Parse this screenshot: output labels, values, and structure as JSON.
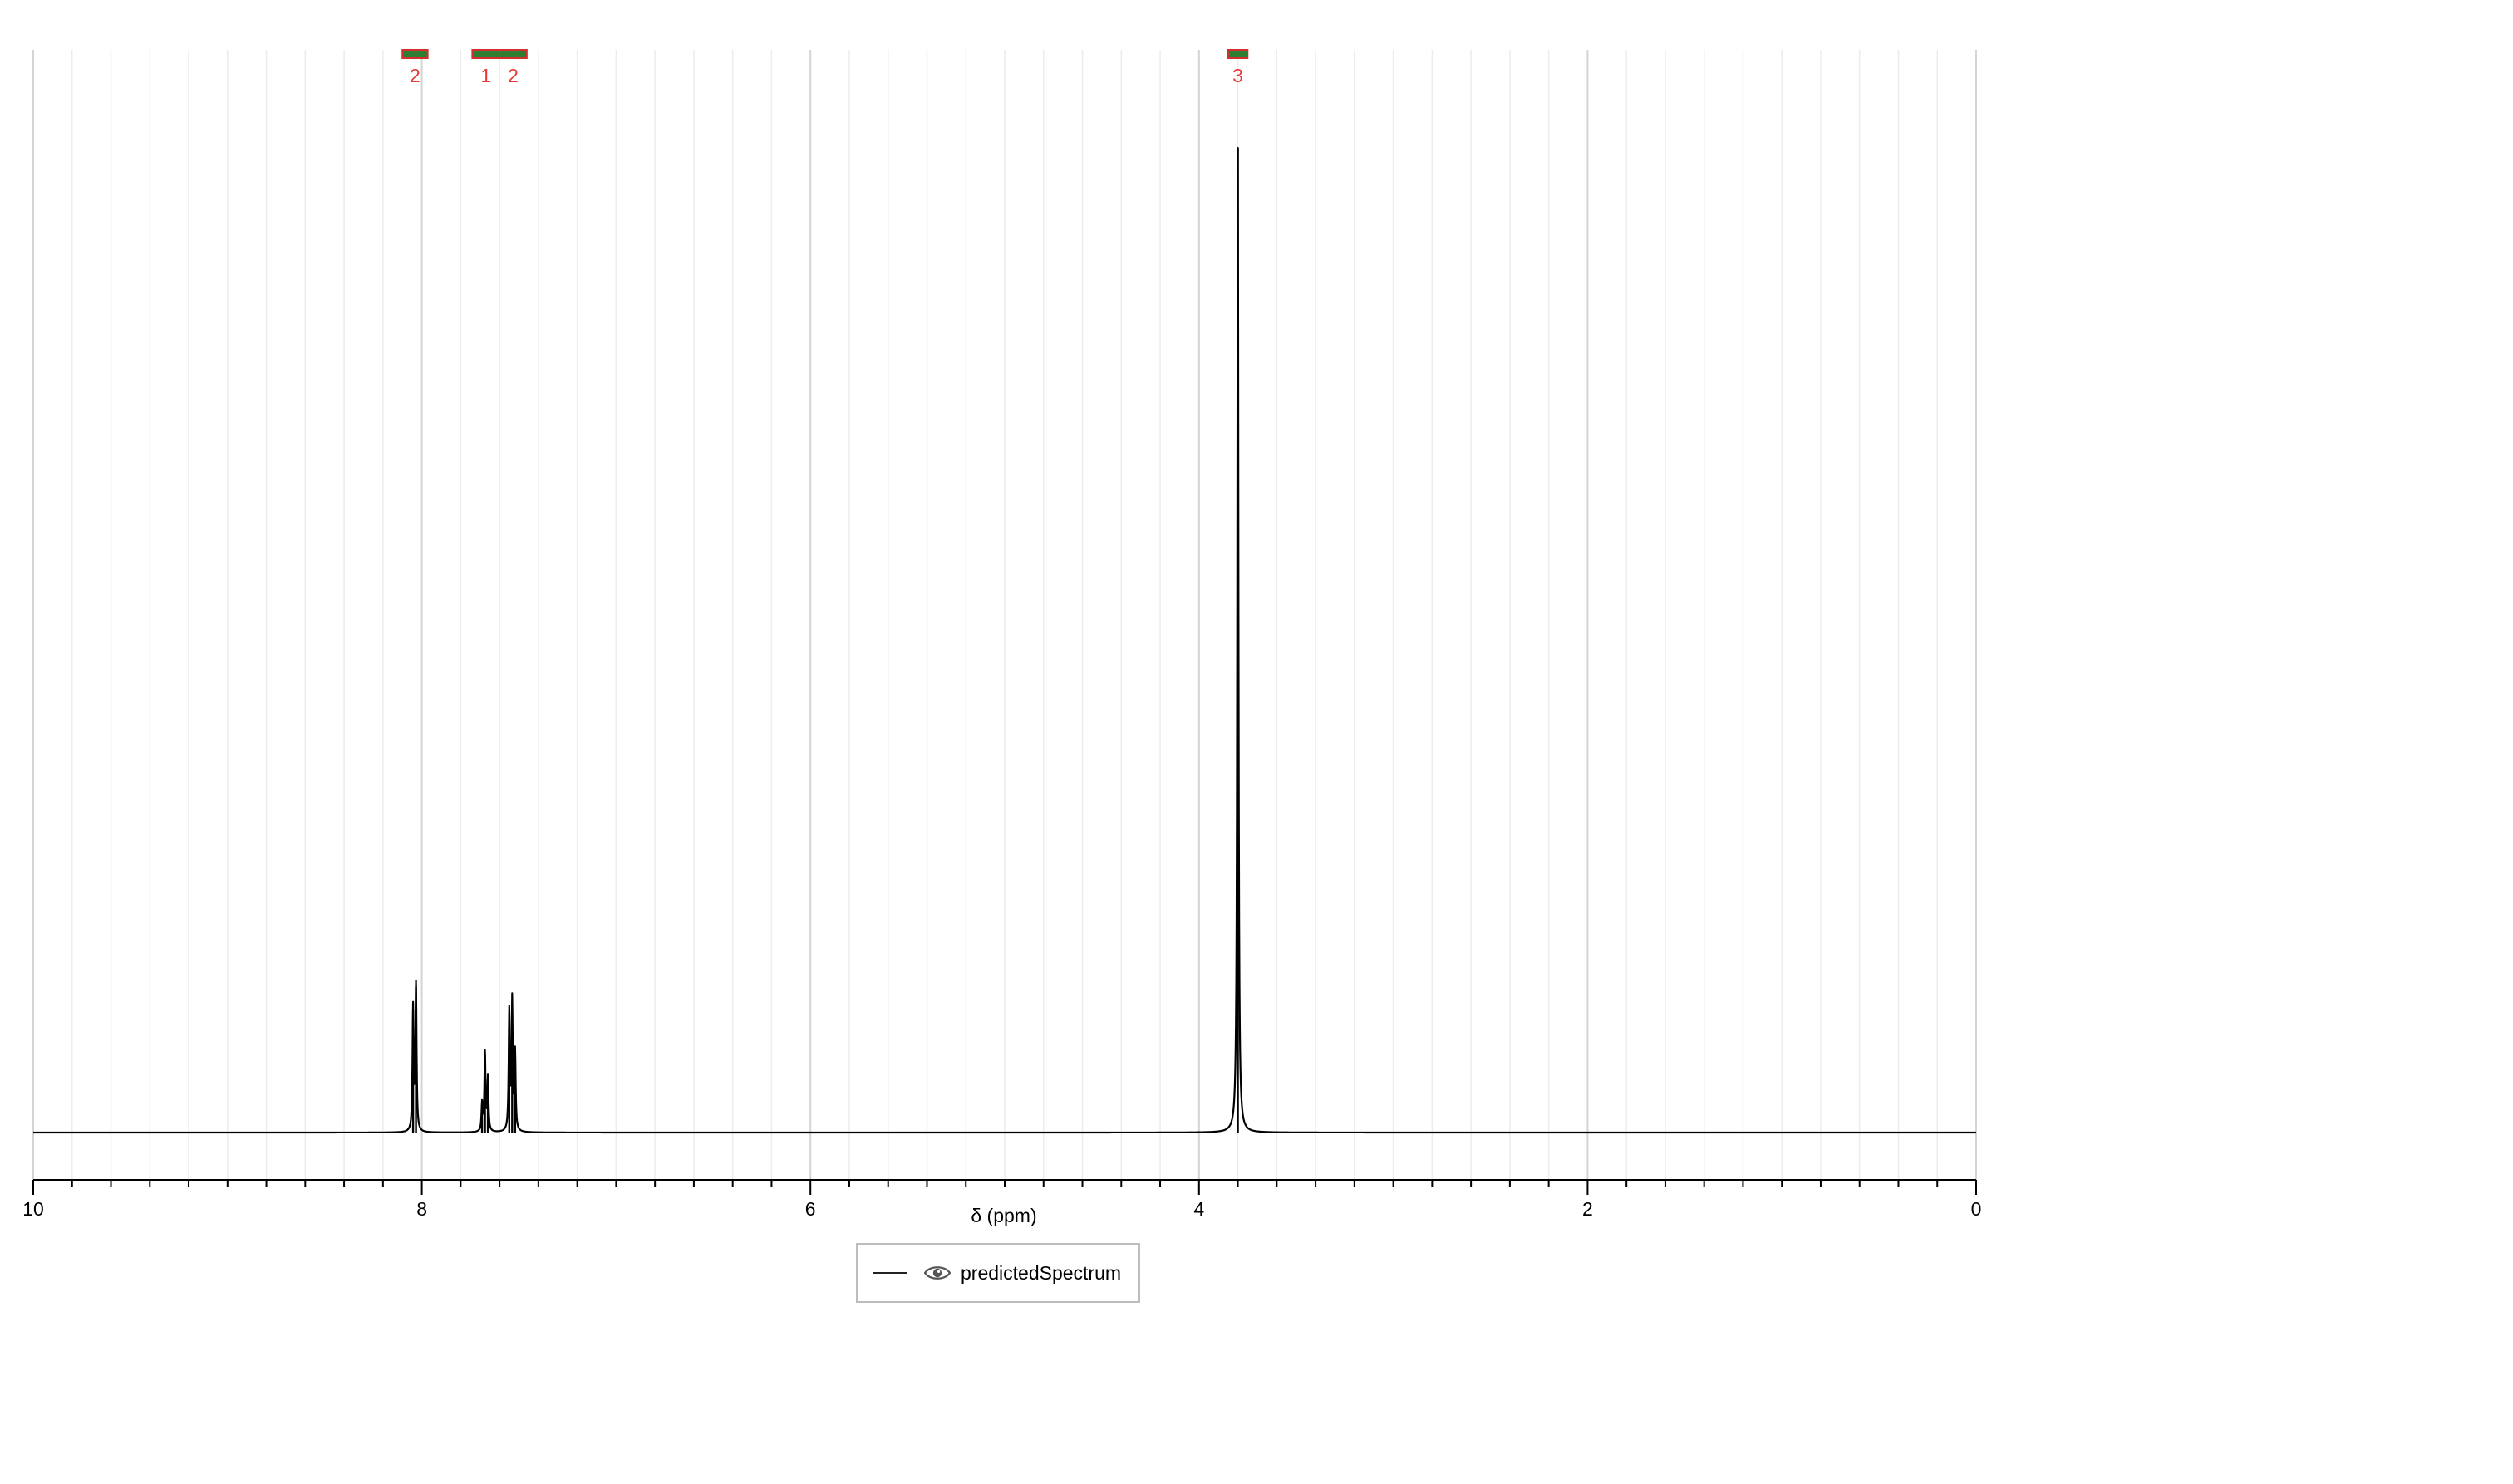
{
  "colors": {
    "background": "#ffffff",
    "trace": "#000000",
    "grid_major": "#d4d4d4",
    "grid_minor": "#ececec",
    "axis": "#000000",
    "integral_bar": "#2e7d32",
    "integral_border": "#d32f2f",
    "integral_label": "#e53935"
  },
  "chart_data": {
    "type": "line",
    "xlabel": "δ (ppm)",
    "ylabel": "",
    "xlim": [
      10,
      0
    ],
    "x_reversed": true,
    "x_ticks": [
      10,
      8,
      6,
      4,
      2,
      0
    ],
    "x_tick_labels": [
      "10",
      "8",
      "6",
      "4",
      "2",
      "0"
    ],
    "grid": true,
    "ylim": [
      0,
      1
    ],
    "series": [
      {
        "name": "predictedSpectrum",
        "peaks": [
          {
            "ppm": 8.045,
            "height": 0.125
          },
          {
            "ppm": 8.03,
            "height": 0.148
          },
          {
            "ppm": 7.69,
            "height": 0.028
          },
          {
            "ppm": 7.675,
            "height": 0.079
          },
          {
            "ppm": 7.66,
            "height": 0.055
          },
          {
            "ppm": 7.55,
            "height": 0.121
          },
          {
            "ppm": 7.535,
            "height": 0.131
          },
          {
            "ppm": 7.52,
            "height": 0.079
          },
          {
            "ppm": 3.8,
            "height": 1.0
          }
        ]
      }
    ],
    "integrals": [
      {
        "from": 8.1,
        "to": 7.97,
        "label": "2"
      },
      {
        "from": 7.74,
        "to": 7.6,
        "label": "1"
      },
      {
        "from": 7.6,
        "to": 7.46,
        "label": "2"
      },
      {
        "from": 3.85,
        "to": 3.75,
        "label": "3"
      }
    ]
  },
  "legend": {
    "label": "predictedSpectrum",
    "icon": "eye-icon"
  }
}
